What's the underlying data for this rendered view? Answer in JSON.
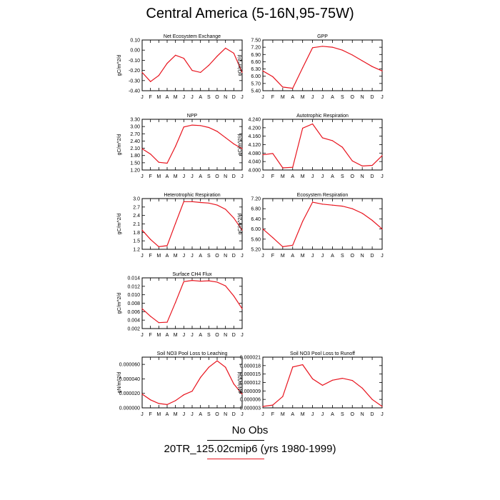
{
  "title": "Central America (5-16N,95-75W)",
  "colors": {
    "series": "#e8141e",
    "obs": "#000000"
  },
  "months": [
    "J",
    "F",
    "M",
    "A",
    "M",
    "J",
    "J",
    "A",
    "S",
    "O",
    "N",
    "D",
    "J"
  ],
  "legend": {
    "obs_label": "No Obs",
    "model_label": "20TR_125.02cmip6 (yrs 1980-1999)"
  },
  "chart_data": [
    {
      "type": "line",
      "title": "Net Ecosystem Exchange",
      "ylabel": "gC/m^2/d",
      "ylim": [
        -0.4,
        0.1
      ],
      "yticks": [
        "0.10",
        "0.00",
        "-0.10",
        "-0.20",
        "-0.30",
        "-0.40"
      ],
      "categories": [
        "J",
        "F",
        "M",
        "A",
        "M",
        "J",
        "J",
        "A",
        "S",
        "O",
        "N",
        "D",
        "J"
      ],
      "values": [
        -0.22,
        -0.31,
        -0.25,
        -0.13,
        -0.05,
        -0.08,
        -0.2,
        -0.22,
        -0.15,
        -0.06,
        0.02,
        -0.03,
        -0.22
      ]
    },
    {
      "type": "line",
      "title": "GPP",
      "ylabel": "gC/m^2/d",
      "ylim": [
        5.4,
        7.5
      ],
      "yticks": [
        "7.50",
        "7.20",
        "6.90",
        "6.60",
        "6.30",
        "6.00",
        "5.70",
        "5.40"
      ],
      "categories": [
        "J",
        "F",
        "M",
        "A",
        "M",
        "J",
        "J",
        "A",
        "S",
        "O",
        "N",
        "D",
        "J"
      ],
      "values": [
        6.22,
        5.98,
        5.55,
        5.5,
        6.35,
        7.18,
        7.24,
        7.2,
        7.08,
        6.88,
        6.64,
        6.4,
        6.22
      ]
    },
    {
      "type": "line",
      "title": "NPP",
      "ylabel": "gC/m^2/d",
      "ylim": [
        1.2,
        3.3
      ],
      "yticks": [
        "3.30",
        "3.00",
        "2.70",
        "2.40",
        "2.10",
        "1.80",
        "1.50",
        "1.20"
      ],
      "categories": [
        "J",
        "F",
        "M",
        "A",
        "M",
        "J",
        "J",
        "A",
        "S",
        "O",
        "N",
        "D",
        "J"
      ],
      "values": [
        2.08,
        1.86,
        1.52,
        1.48,
        2.18,
        2.98,
        3.06,
        3.04,
        2.96,
        2.8,
        2.54,
        2.28,
        2.08
      ]
    },
    {
      "type": "line",
      "title": "Autotrophic Respiration",
      "ylabel": "gC/m^2/d",
      "ylim": [
        4.0,
        4.24
      ],
      "yticks": [
        "4.240",
        "4.200",
        "4.160",
        "4.120",
        "4.080",
        "4.040",
        "4.000"
      ],
      "categories": [
        "J",
        "F",
        "M",
        "A",
        "M",
        "J",
        "J",
        "A",
        "S",
        "O",
        "N",
        "D",
        "J"
      ],
      "values": [
        4.072,
        4.078,
        4.01,
        4.013,
        4.198,
        4.218,
        4.152,
        4.139,
        4.108,
        4.043,
        4.019,
        4.022,
        4.068
      ]
    },
    {
      "type": "line",
      "title": "Heterotrophic Respiration",
      "ylabel": "gC/m^2/d",
      "ylim": [
        1.2,
        3.0
      ],
      "yticks": [
        "3.0",
        "2.7",
        "2.4",
        "2.1",
        "1.8",
        "1.5",
        "1.2"
      ],
      "categories": [
        "J",
        "F",
        "M",
        "A",
        "M",
        "J",
        "J",
        "A",
        "S",
        "O",
        "N",
        "D",
        "J"
      ],
      "values": [
        1.88,
        1.55,
        1.29,
        1.33,
        2.12,
        2.89,
        2.89,
        2.86,
        2.84,
        2.77,
        2.62,
        2.31,
        1.88
      ]
    },
    {
      "type": "line",
      "title": "Ecosystem Respiration",
      "ylabel": "gC/m^2/d",
      "ylim": [
        5.2,
        7.2
      ],
      "yticks": [
        "7.20",
        "6.80",
        "6.40",
        "6.00",
        "5.60",
        "5.20"
      ],
      "categories": [
        "J",
        "F",
        "M",
        "A",
        "M",
        "J",
        "J",
        "A",
        "S",
        "O",
        "N",
        "D",
        "J"
      ],
      "values": [
        6.0,
        5.66,
        5.3,
        5.36,
        6.3,
        7.06,
        6.98,
        6.94,
        6.9,
        6.8,
        6.62,
        6.34,
        6.0
      ]
    },
    {
      "type": "line",
      "title": "Surface CH4 Flux",
      "ylabel": "gC/m^2/d",
      "ylim": [
        0.002,
        0.014
      ],
      "yticks": [
        "0.014",
        "0.012",
        "0.010",
        "0.008",
        "0.006",
        "0.004",
        "0.002"
      ],
      "categories": [
        "J",
        "F",
        "M",
        "A",
        "M",
        "J",
        "J",
        "A",
        "S",
        "O",
        "N",
        "D",
        "J"
      ],
      "values": [
        0.0067,
        0.0049,
        0.0034,
        0.0035,
        0.0082,
        0.0131,
        0.0134,
        0.0132,
        0.0133,
        0.013,
        0.0121,
        0.0097,
        0.0067
      ]
    },
    {
      "type": "line",
      "title": "Soil NO3 Pool Loss to Leaching",
      "ylabel": "gN/m^2/d",
      "ylim": [
        0.0,
        7e-05
      ],
      "yticks": [
        "0.000060",
        "0.000040",
        "0.000020",
        "0.000000"
      ],
      "categories": [
        "J",
        "F",
        "M",
        "A",
        "M",
        "J",
        "J",
        "A",
        "S",
        "O",
        "N",
        "D",
        "J"
      ],
      "values": [
        1.9e-05,
        1.1e-05,
        6e-06,
        4.5e-06,
        1e-05,
        1.8e-05,
        2.3e-05,
        4.2e-05,
        5.6e-05,
        6.5e-05,
        5.6e-05,
        3.3e-05,
        1.9e-05
      ]
    },
    {
      "type": "line",
      "title": "Soil NO3 Pool Loss to Runoff",
      "ylabel": "gN/m^2/d",
      "ylim": [
        3e-06,
        2.1e-05
      ],
      "yticks": [
        "0.000021",
        "0.000018",
        "0.000015",
        "0.000012",
        "0.000009",
        "0.000006",
        "0.000003"
      ],
      "categories": [
        "J",
        "F",
        "M",
        "A",
        "M",
        "J",
        "J",
        "A",
        "S",
        "O",
        "N",
        "D",
        "J"
      ],
      "values": [
        3.5e-06,
        4e-06,
        7e-06,
        1.75e-05,
        1.83e-05,
        1.33e-05,
        1.1e-05,
        1.28e-05,
        1.35e-05,
        1.27e-05,
        1e-05,
        6e-06,
        3.5e-06
      ]
    }
  ]
}
